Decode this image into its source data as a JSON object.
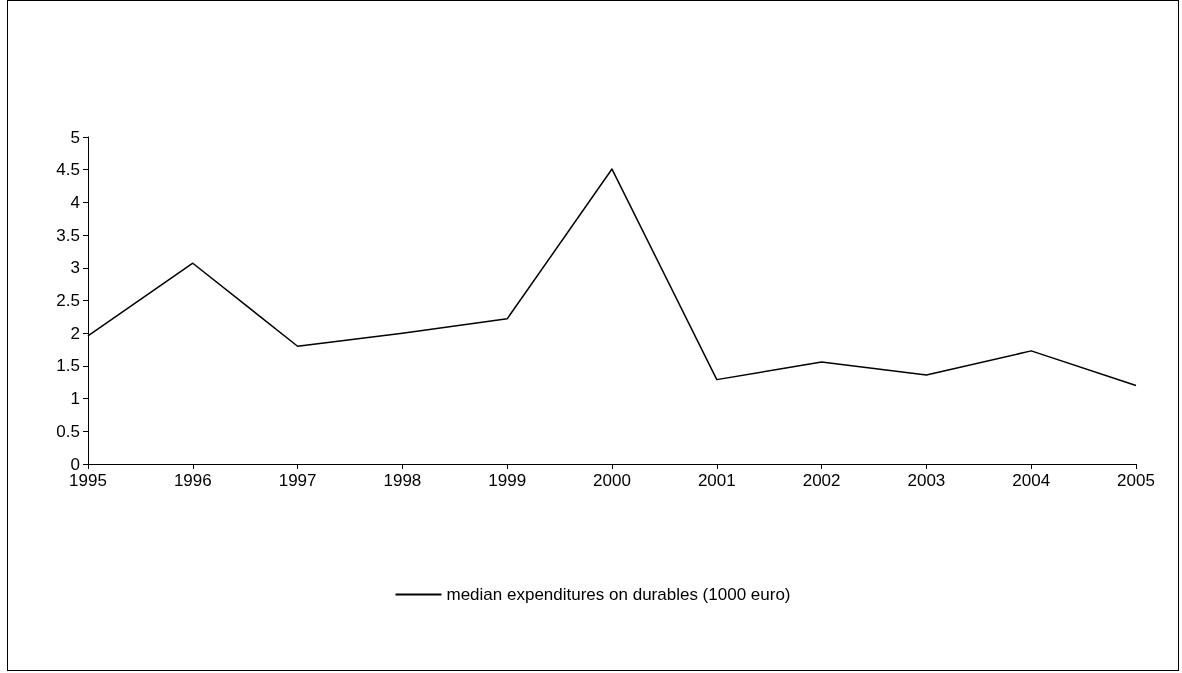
{
  "chart_data": {
    "type": "line",
    "categories": [
      "1995",
      "1996",
      "1997",
      "1998",
      "1999",
      "2000",
      "2001",
      "2002",
      "2003",
      "2004",
      "2005"
    ],
    "series": [
      {
        "name": "median expenditures on durables (1000 euro)",
        "color": "#000000",
        "values": [
          1.96,
          3.07,
          1.8,
          2.0,
          2.22,
          4.51,
          1.29,
          1.56,
          1.36,
          1.73,
          1.2
        ]
      }
    ],
    "ylim": [
      0,
      5
    ],
    "yticks": [
      0,
      0.5,
      1,
      1.5,
      2,
      2.5,
      3,
      3.5,
      4,
      4.5,
      5
    ],
    "grid": false,
    "legend": "bottom",
    "marker": "none",
    "line_style": "solid"
  }
}
